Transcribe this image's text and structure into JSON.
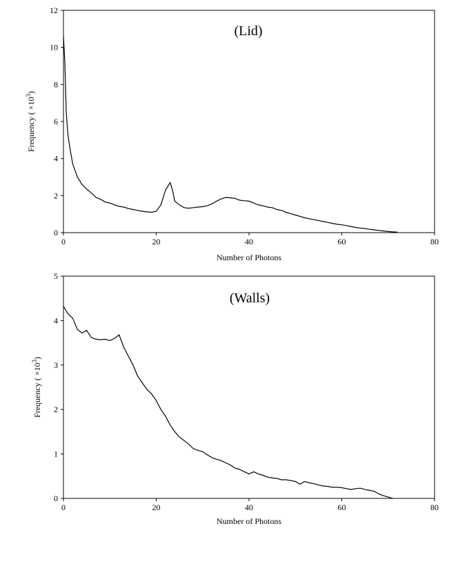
{
  "chart_data": [
    {
      "type": "line",
      "title": "(Lid)",
      "xlabel": "Number of Photons",
      "ylabel": "Frequency ( ×10",
      "ylabel_sup": "3",
      "ylabel_close": ")",
      "xlim": [
        0,
        80
      ],
      "ylim": [
        0,
        12
      ],
      "xticks": [
        0,
        20,
        40,
        60,
        80
      ],
      "yticks": [
        0,
        2,
        4,
        6,
        8,
        10,
        12
      ],
      "grid": false,
      "legend": "none",
      "series": [
        {
          "values": [
            [
              0,
              10.6
            ],
            [
              0.3,
              9.2
            ],
            [
              0.6,
              6.5
            ],
            [
              1,
              5.2
            ],
            [
              1.5,
              4.4
            ],
            [
              2,
              3.7
            ],
            [
              3,
              3.0
            ],
            [
              4,
              2.6
            ],
            [
              5,
              2.35
            ],
            [
              6,
              2.15
            ],
            [
              7,
              1.9
            ],
            [
              8,
              1.8
            ],
            [
              9,
              1.65
            ],
            [
              10,
              1.6
            ],
            [
              11,
              1.5
            ],
            [
              12,
              1.42
            ],
            [
              13,
              1.38
            ],
            [
              14,
              1.3
            ],
            [
              15,
              1.25
            ],
            [
              16,
              1.2
            ],
            [
              17,
              1.15
            ],
            [
              18,
              1.12
            ],
            [
              19,
              1.1
            ],
            [
              20,
              1.15
            ],
            [
              21,
              1.5
            ],
            [
              22,
              2.3
            ],
            [
              23,
              2.7
            ],
            [
              23.5,
              2.3
            ],
            [
              24,
              1.7
            ],
            [
              25,
              1.5
            ],
            [
              26,
              1.35
            ],
            [
              27,
              1.32
            ],
            [
              28,
              1.35
            ],
            [
              29,
              1.38
            ],
            [
              30,
              1.4
            ],
            [
              31,
              1.45
            ],
            [
              32,
              1.55
            ],
            [
              33,
              1.7
            ],
            [
              34,
              1.82
            ],
            [
              35,
              1.9
            ],
            [
              36,
              1.88
            ],
            [
              37,
              1.85
            ],
            [
              38,
              1.75
            ],
            [
              39,
              1.72
            ],
            [
              40,
              1.7
            ],
            [
              41,
              1.6
            ],
            [
              42,
              1.5
            ],
            [
              43,
              1.45
            ],
            [
              44,
              1.38
            ],
            [
              45,
              1.35
            ],
            [
              46,
              1.25
            ],
            [
              47,
              1.2
            ],
            [
              48,
              1.1
            ],
            [
              49,
              1.02
            ],
            [
              50,
              0.95
            ],
            [
              51,
              0.88
            ],
            [
              52,
              0.8
            ],
            [
              53,
              0.75
            ],
            [
              54,
              0.7
            ],
            [
              55,
              0.65
            ],
            [
              56,
              0.6
            ],
            [
              57,
              0.55
            ],
            [
              58,
              0.5
            ],
            [
              59,
              0.45
            ],
            [
              60,
              0.42
            ],
            [
              61,
              0.38
            ],
            [
              62,
              0.33
            ],
            [
              63,
              0.28
            ],
            [
              64,
              0.25
            ],
            [
              65,
              0.22
            ],
            [
              66,
              0.18
            ],
            [
              67,
              0.15
            ],
            [
              68,
              0.12
            ],
            [
              69,
              0.09
            ],
            [
              70,
              0.06
            ],
            [
              71,
              0.04
            ],
            [
              72,
              0.03
            ]
          ]
        }
      ]
    },
    {
      "type": "line",
      "title": "(Walls)",
      "xlabel": "Number of Photons",
      "ylabel": "Frequency ( ×10",
      "ylabel_sup": "3",
      "ylabel_close": ")",
      "xlim": [
        0,
        80
      ],
      "ylim": [
        0,
        5
      ],
      "xticks": [
        0,
        20,
        40,
        60,
        80
      ],
      "yticks": [
        0,
        1,
        2,
        3,
        4,
        5
      ],
      "grid": false,
      "legend": "none",
      "series": [
        {
          "values": [
            [
              0,
              4.32
            ],
            [
              1,
              4.15
            ],
            [
              2,
              4.05
            ],
            [
              3,
              3.8
            ],
            [
              4,
              3.72
            ],
            [
              5,
              3.78
            ],
            [
              6,
              3.62
            ],
            [
              7,
              3.58
            ],
            [
              8,
              3.57
            ],
            [
              9,
              3.58
            ],
            [
              10,
              3.55
            ],
            [
              11,
              3.6
            ],
            [
              12,
              3.68
            ],
            [
              13,
              3.4
            ],
            [
              14,
              3.2
            ],
            [
              15,
              3.0
            ],
            [
              16,
              2.75
            ],
            [
              17,
              2.6
            ],
            [
              18,
              2.45
            ],
            [
              19,
              2.35
            ],
            [
              20,
              2.2
            ],
            [
              21,
              2.0
            ],
            [
              22,
              1.85
            ],
            [
              23,
              1.65
            ],
            [
              24,
              1.5
            ],
            [
              25,
              1.38
            ],
            [
              26,
              1.3
            ],
            [
              27,
              1.22
            ],
            [
              28,
              1.12
            ],
            [
              29,
              1.08
            ],
            [
              30,
              1.05
            ],
            [
              31,
              0.98
            ],
            [
              32,
              0.92
            ],
            [
              33,
              0.88
            ],
            [
              34,
              0.85
            ],
            [
              35,
              0.8
            ],
            [
              36,
              0.75
            ],
            [
              37,
              0.68
            ],
            [
              38,
              0.65
            ],
            [
              39,
              0.6
            ],
            [
              40,
              0.55
            ],
            [
              41,
              0.6
            ],
            [
              42,
              0.55
            ],
            [
              43,
              0.52
            ],
            [
              44,
              0.48
            ],
            [
              45,
              0.46
            ],
            [
              46,
              0.45
            ],
            [
              47,
              0.42
            ],
            [
              48,
              0.42
            ],
            [
              49,
              0.4
            ],
            [
              50,
              0.38
            ],
            [
              51,
              0.32
            ],
            [
              52,
              0.38
            ],
            [
              53,
              0.35
            ],
            [
              54,
              0.33
            ],
            [
              55,
              0.3
            ],
            [
              56,
              0.28
            ],
            [
              57,
              0.27
            ],
            [
              58,
              0.25
            ],
            [
              59,
              0.25
            ],
            [
              60,
              0.24
            ],
            [
              61,
              0.22
            ],
            [
              62,
              0.2
            ],
            [
              63,
              0.22
            ],
            [
              64,
              0.23
            ],
            [
              65,
              0.2
            ],
            [
              66,
              0.18
            ],
            [
              67,
              0.16
            ],
            [
              68,
              0.1
            ],
            [
              69,
              0.06
            ],
            [
              70,
              0.03
            ],
            [
              71,
              0.0
            ]
          ]
        }
      ]
    }
  ]
}
